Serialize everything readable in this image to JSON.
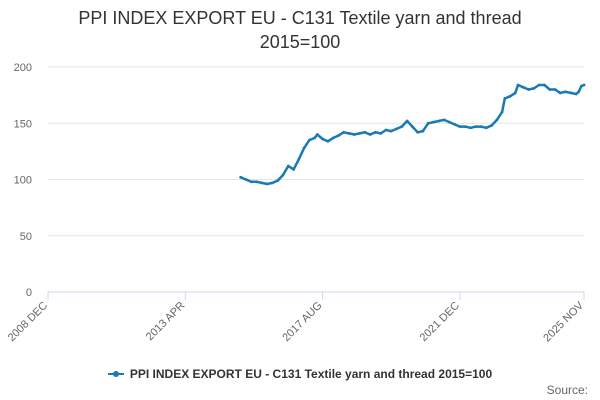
{
  "chart_data": {
    "type": "line",
    "title": "PPI INDEX EXPORT EU - C131 Textile yarn and thread",
    "subtitle": "2015=100",
    "xlabel": "",
    "ylabel": "",
    "x_ticks": [
      "2008 DEC",
      "2013 APR",
      "2017 AUG",
      "2021 DEC",
      "2025 NOV"
    ],
    "y_ticks": [
      0,
      50,
      100,
      150,
      200
    ],
    "ylim": [
      0,
      200
    ],
    "xlim": [
      "2008-12",
      "2025-11"
    ],
    "grid": true,
    "legend_position": "bottom",
    "series": [
      {
        "name": "PPI INDEX EXPORT EU - C131 Textile yarn and thread 2015=100",
        "color": "#1a7ab5",
        "points": [
          [
            "2015-01",
            102
          ],
          [
            "2015-03",
            100
          ],
          [
            "2015-05",
            98
          ],
          [
            "2015-07",
            98
          ],
          [
            "2015-09",
            97
          ],
          [
            "2015-11",
            96
          ],
          [
            "2016-01",
            97
          ],
          [
            "2016-03",
            99
          ],
          [
            "2016-05",
            104
          ],
          [
            "2016-07",
            112
          ],
          [
            "2016-09",
            109
          ],
          [
            "2016-11",
            118
          ],
          [
            "2017-01",
            128
          ],
          [
            "2017-03",
            135
          ],
          [
            "2017-05",
            137
          ],
          [
            "2017-06",
            140
          ],
          [
            "2017-08",
            136
          ],
          [
            "2017-10",
            134
          ],
          [
            "2017-12",
            137
          ],
          [
            "2018-02",
            139
          ],
          [
            "2018-04",
            142
          ],
          [
            "2018-06",
            141
          ],
          [
            "2018-08",
            140
          ],
          [
            "2018-10",
            141
          ],
          [
            "2018-12",
            142
          ],
          [
            "2019-02",
            140
          ],
          [
            "2019-04",
            142
          ],
          [
            "2019-06",
            141
          ],
          [
            "2019-08",
            144
          ],
          [
            "2019-10",
            143
          ],
          [
            "2019-12",
            145
          ],
          [
            "2020-02",
            147
          ],
          [
            "2020-04",
            152
          ],
          [
            "2020-06",
            147
          ],
          [
            "2020-08",
            142
          ],
          [
            "2020-10",
            143
          ],
          [
            "2020-12",
            150
          ],
          [
            "2021-02",
            151
          ],
          [
            "2021-04",
            152
          ],
          [
            "2021-06",
            153
          ],
          [
            "2021-08",
            151
          ],
          [
            "2021-10",
            149
          ],
          [
            "2021-12",
            147
          ],
          [
            "2022-02",
            147
          ],
          [
            "2022-04",
            146
          ],
          [
            "2022-06",
            147
          ],
          [
            "2022-08",
            147
          ],
          [
            "2022-10",
            146
          ],
          [
            "2022-12",
            148
          ],
          [
            "2023-02",
            153
          ],
          [
            "2023-04",
            160
          ],
          [
            "2023-05",
            172
          ],
          [
            "2023-07",
            174
          ],
          [
            "2023-09",
            177
          ],
          [
            "2023-10",
            184
          ],
          [
            "2023-12",
            182
          ],
          [
            "2024-02",
            180
          ],
          [
            "2024-04",
            181
          ],
          [
            "2024-06",
            184
          ],
          [
            "2024-08",
            184
          ],
          [
            "2024-10",
            180
          ],
          [
            "2024-12",
            180
          ],
          [
            "2025-02",
            177
          ],
          [
            "2025-04",
            178
          ],
          [
            "2025-06",
            177
          ],
          [
            "2025-08",
            176
          ],
          [
            "2025-09",
            178
          ],
          [
            "2025-10",
            183
          ],
          [
            "2025-11",
            184
          ]
        ]
      }
    ]
  },
  "title_lines": [
    "PPI INDEX EXPORT EU - C131 Textile yarn and thread",
    "2015=100"
  ],
  "legend_label": "PPI INDEX EXPORT EU - C131 Textile yarn and thread 2015=100",
  "credits": "Source:",
  "colors": {
    "series": "#1a7ab5",
    "grid": "#e6e6e6",
    "axis_text": "#666666",
    "title": "#333333"
  }
}
